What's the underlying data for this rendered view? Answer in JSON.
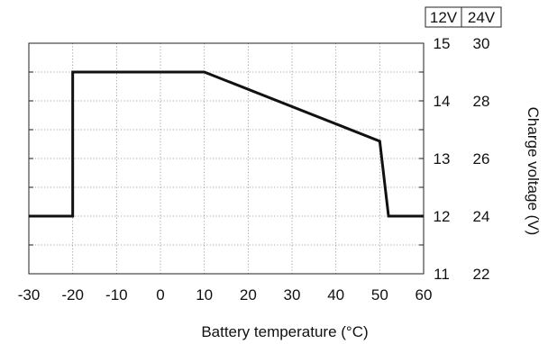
{
  "chart_data": {
    "type": "line",
    "title": "",
    "xlabel": "Battery temperature (°C)",
    "ylabel": "Charge voltage (V)",
    "xlim": [
      -30,
      60
    ],
    "ylim": [
      11,
      15
    ],
    "x_ticks": [
      "-30",
      "-20",
      "-10",
      "0",
      "10",
      "20",
      "30",
      "40",
      "50",
      "60"
    ],
    "x_tick_values": [
      -30,
      -20,
      -10,
      0,
      10,
      20,
      30,
      40,
      50,
      60
    ],
    "y_ticks_12v": [
      "11",
      "12",
      "13",
      "14",
      "15"
    ],
    "y_ticks_24v": [
      "22",
      "24",
      "26",
      "28",
      "30"
    ],
    "y_tick_values": [
      11,
      12,
      13,
      14,
      15
    ],
    "minor_y_values": [
      11.5,
      12.5,
      13.5,
      14.5
    ],
    "voltage_headers": [
      "12V",
      "24V"
    ],
    "grid": true,
    "series": [
      {
        "x": [
          -30,
          -20,
          -20,
          10,
          50,
          52,
          60
        ],
        "y": [
          12,
          12,
          14.5,
          14.5,
          13.3,
          12,
          12
        ]
      }
    ]
  },
  "colors": {
    "line": "#111111",
    "grid": "#8c8c8c",
    "frame": "#222222",
    "text": "#111111"
  }
}
